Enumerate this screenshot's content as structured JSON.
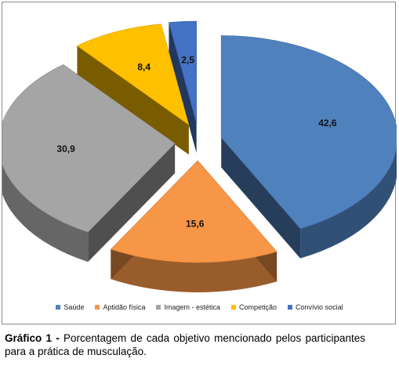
{
  "chart_data": {
    "type": "pie",
    "style": "3d-exploded",
    "categories": [
      "Saúde",
      "Aptidão física",
      "Imagem - estética",
      "Competição",
      "Convívio social"
    ],
    "values": [
      42.6,
      15.6,
      30.9,
      8.4,
      2.5
    ],
    "value_labels": [
      "42,6",
      "15,6",
      "30,9",
      "8,4",
      "2,5"
    ],
    "colors": [
      "#4f81bd",
      "#f79646",
      "#a5a5a5",
      "#ffc000",
      "#4472c4"
    ],
    "legend_position": "bottom"
  },
  "caption": {
    "label": "Gráfico 1 -",
    "text": " Porcentagem de cada objetivo mencionado pelos participantes para a prática de musculação."
  }
}
